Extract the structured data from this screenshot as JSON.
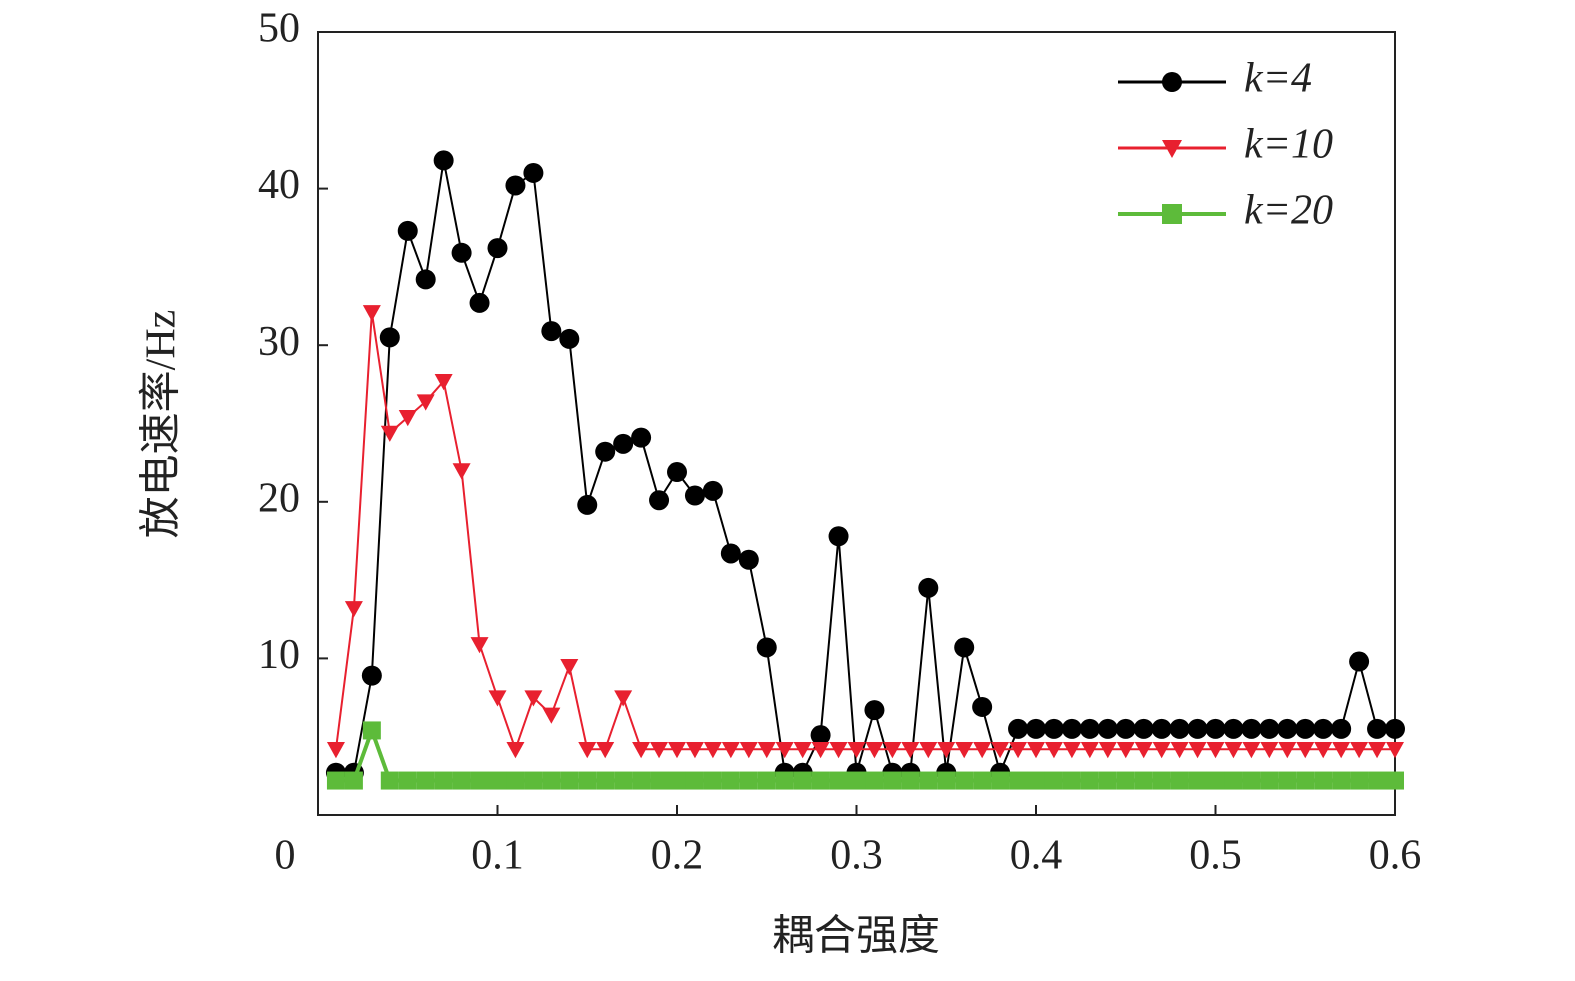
{
  "chart_data": {
    "type": "line",
    "xlabel": "耦合强度",
    "ylabel": "放电速率/Hz",
    "x": [
      0.01,
      0.02,
      0.03,
      0.04,
      0.05,
      0.06,
      0.07,
      0.08,
      0.09,
      0.1,
      0.11,
      0.12,
      0.13,
      0.14,
      0.15,
      0.16,
      0.17,
      0.18,
      0.19,
      0.2,
      0.21,
      0.22,
      0.23,
      0.24,
      0.25,
      0.26,
      0.27,
      0.28,
      0.29,
      0.3,
      0.31,
      0.32,
      0.33,
      0.34,
      0.35,
      0.36,
      0.37,
      0.38,
      0.39,
      0.4,
      0.41,
      0.42,
      0.43,
      0.44,
      0.45,
      0.46,
      0.47,
      0.48,
      0.49,
      0.5,
      0.51,
      0.52,
      0.53,
      0.54,
      0.55,
      0.56,
      0.57,
      0.58,
      0.59,
      0.6
    ],
    "series": [
      {
        "name": "k=4",
        "color": "#000000",
        "marker": "circle",
        "values": [
          2.7,
          2.7,
          8.9,
          30.5,
          37.3,
          34.2,
          41.8,
          35.9,
          32.7,
          36.2,
          40.2,
          41.0,
          30.9,
          30.4,
          19.8,
          23.2,
          23.7,
          24.1,
          20.1,
          21.9,
          20.4,
          20.7,
          16.7,
          16.3,
          10.7,
          2.7,
          2.7,
          5.1,
          17.8,
          2.7,
          6.7,
          2.7,
          2.7,
          14.5,
          2.7,
          10.7,
          6.9,
          2.7,
          5.5,
          5.5,
          5.5,
          5.5,
          5.5,
          5.5,
          5.5,
          5.5,
          5.5,
          5.5,
          5.5,
          5.5,
          5.5,
          5.5,
          5.5,
          5.5,
          5.5,
          5.5,
          5.5,
          9.8,
          5.5,
          5.5
        ]
      },
      {
        "name": "k=10",
        "color": "#e8202f",
        "marker": "triangle-down",
        "values": [
          4.2,
          13.2,
          32.1,
          24.4,
          25.4,
          26.4,
          27.7,
          22.0,
          10.9,
          7.5,
          4.2,
          7.5,
          6.4,
          9.5,
          4.2,
          4.2,
          7.5,
          4.2,
          4.2,
          4.2,
          4.2,
          4.2,
          4.2,
          4.2,
          4.2,
          4.2,
          4.2,
          4.2,
          4.2,
          4.2,
          4.2,
          4.2,
          4.2,
          4.2,
          4.2,
          4.2,
          4.2,
          4.2,
          4.2,
          4.2,
          4.2,
          4.2,
          4.2,
          4.2,
          4.2,
          4.2,
          4.2,
          4.2,
          4.2,
          4.2,
          4.2,
          4.2,
          4.2,
          4.2,
          4.2,
          4.2,
          4.2,
          4.2,
          4.2,
          4.2
        ]
      },
      {
        "name": "k=20",
        "color": "#5dbb3a",
        "marker": "square",
        "values": [
          2.2,
          2.2,
          5.4,
          2.2,
          2.2,
          2.2,
          2.2,
          2.2,
          2.2,
          2.2,
          2.2,
          2.2,
          2.2,
          2.2,
          2.2,
          2.2,
          2.2,
          2.2,
          2.2,
          2.2,
          2.2,
          2.2,
          2.2,
          2.2,
          2.2,
          2.2,
          2.2,
          2.2,
          2.2,
          2.2,
          2.2,
          2.2,
          2.2,
          2.2,
          2.2,
          2.2,
          2.2,
          2.2,
          2.2,
          2.2,
          2.2,
          2.2,
          2.2,
          2.2,
          2.2,
          2.2,
          2.2,
          2.2,
          2.2,
          2.2,
          2.2,
          2.2,
          2.2,
          2.2,
          2.2,
          2.2,
          2.2,
          2.2,
          2.2,
          2.2
        ]
      }
    ],
    "xlim": [
      0,
      0.6
    ],
    "xticks": [
      0,
      0.1,
      0.2,
      0.3,
      0.4,
      0.5,
      0.6
    ],
    "ylim": [
      0,
      50
    ],
    "yticks": [
      10,
      20,
      30,
      40,
      50
    ],
    "legend": "upper right",
    "grid": false
  }
}
